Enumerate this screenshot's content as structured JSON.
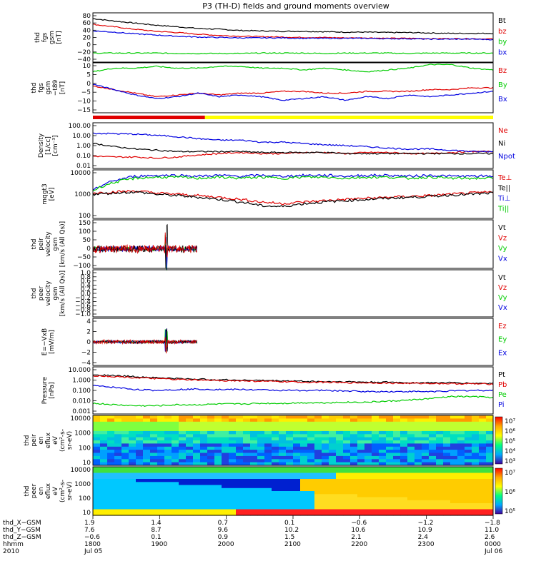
{
  "title": "P3 (TH-D) fields and ground moments overview",
  "colors": {
    "black": "#000000",
    "red": "#e00000",
    "green": "#00cc00",
    "blue": "#0000e0",
    "yellow": "#ffff00"
  },
  "chart_data": [
    {
      "id": "p1",
      "type": "line",
      "ylabel": [
        "thd",
        "fgs",
        "gsm",
        "[nT]"
      ],
      "yticks": [
        "80",
        "60",
        "40",
        "20",
        "0",
        "−20",
        "−40"
      ],
      "ylim": [
        -40,
        80
      ],
      "series": [
        {
          "name": "Bt",
          "color": "black",
          "values": [
            66,
            60,
            55,
            50,
            46,
            42,
            40,
            37,
            36,
            35,
            35,
            34,
            33,
            33,
            32,
            32,
            31,
            30,
            30,
            30
          ]
        },
        {
          "name": "bz",
          "color": "red",
          "values": [
            52,
            46,
            40,
            35,
            32,
            28,
            25,
            23,
            22,
            21,
            20,
            20,
            19,
            19,
            18,
            18,
            17,
            17,
            17,
            16
          ]
        },
        {
          "name": "by",
          "color": "green",
          "values": [
            -18,
            -18,
            -18,
            -18,
            -19,
            -19,
            -19,
            -19,
            -18,
            -18,
            -18,
            -19,
            -18,
            -18,
            -18,
            -19,
            -18,
            -18,
            -18,
            -18
          ]
        },
        {
          "name": "bx",
          "color": "blue",
          "values": [
            36,
            33,
            29,
            26,
            23,
            21,
            20,
            19,
            19,
            19,
            18,
            18,
            18,
            18,
            17,
            17,
            16,
            16,
            16,
            15
          ]
        }
      ]
    },
    {
      "id": "p2",
      "type": "line",
      "ylabel": [
        "thd",
        "fgs",
        "gsm",
        "−t89",
        "[nT]"
      ],
      "yticks": [
        "10",
        "5",
        "0",
        "−5",
        "−10",
        "−15"
      ],
      "ylim": [
        -18,
        10
      ],
      "series": [
        {
          "name": "Bz",
          "color": "red",
          "values": [
            -3,
            -5,
            -7,
            -9,
            -8,
            -7,
            -8,
            -7,
            -7,
            -6,
            -6,
            -7,
            -7,
            -6,
            -6,
            -6,
            -5,
            -5,
            -4,
            -4
          ]
        },
        {
          "name": "By",
          "color": "green",
          "values": [
            5,
            7,
            7,
            8,
            7,
            7,
            8,
            8,
            7,
            7,
            6,
            7,
            6,
            5,
            6,
            7,
            9,
            9,
            7,
            6
          ]
        },
        {
          "name": "Bx",
          "color": "blue",
          "values": [
            -2,
            -5,
            -8,
            -10,
            -9,
            -7,
            -9,
            -8,
            -9,
            -11,
            -10,
            -9,
            -11,
            -9,
            -10,
            -8,
            -9,
            -8,
            -7,
            -6
          ]
        }
      ],
      "flag_bar": {
        "red_fraction": 0.28
      }
    },
    {
      "id": "p3",
      "type": "line",
      "log": true,
      "ylabel": [
        "Density",
        "[1/cc]",
        "[cm⁻³]"
      ],
      "yticks": [
        "100.00",
        "10.00",
        "1.00",
        "0.10",
        "0.01"
      ],
      "ylim": [
        0.01,
        100
      ],
      "series": [
        {
          "name": "Ne",
          "color": "red",
          "values": [
            0.12,
            0.1,
            0.1,
            0.08,
            0.1,
            0.15,
            0.2,
            0.25,
            0.2,
            0.2,
            0.25,
            0.25,
            0.2,
            0.25,
            0.25,
            0.2,
            0.2,
            0.25,
            0.3,
            0.3
          ]
        },
        {
          "name": "Ni",
          "color": "black",
          "values": [
            1.5,
            0.8,
            0.5,
            0.4,
            0.3,
            0.3,
            0.3,
            0.3,
            0.25,
            0.25,
            0.25,
            0.25,
            0.2,
            0.2,
            0.2,
            0.2,
            0.2,
            0.2,
            0.2,
            0.2
          ]
        },
        {
          "name": "Npot",
          "color": "blue",
          "values": [
            12,
            11,
            10,
            8,
            6,
            4,
            3,
            3,
            2,
            2,
            1.5,
            1.2,
            1,
            0.8,
            0.6,
            0.5,
            0.5,
            0.4,
            0.3,
            0.3
          ]
        }
      ]
    },
    {
      "id": "p4",
      "type": "line",
      "log": true,
      "ylabel": [
        "mqgt3",
        "[eV]"
      ],
      "yticks": [
        "10000",
        "1000",
        "100"
      ],
      "ylim": [
        50,
        10000
      ],
      "series": [
        {
          "name": "Te⊥",
          "color": "red",
          "values": [
            800,
            900,
            1000,
            800,
            700,
            600,
            500,
            400,
            300,
            250,
            300,
            350,
            400,
            450,
            500,
            550,
            600,
            700,
            800,
            900
          ]
        },
        {
          "name": "Te||",
          "color": "black",
          "values": [
            700,
            800,
            900,
            700,
            600,
            500,
            400,
            300,
            200,
            180,
            250,
            300,
            350,
            400,
            450,
            500,
            550,
            650,
            700,
            800
          ]
        },
        {
          "name": "Ti⊥",
          "color": "blue",
          "values": [
            1000,
            3000,
            5000,
            5500,
            5500,
            5000,
            5500,
            5000,
            5500,
            5000,
            5500,
            5500,
            5000,
            5500,
            5500,
            5000,
            5500,
            5000,
            5000,
            5000
          ]
        },
        {
          "name": "Ti||",
          "color": "green",
          "values": [
            1000,
            2500,
            4000,
            4500,
            4500,
            4000,
            4500,
            4000,
            4500,
            4000,
            4500,
            4500,
            4000,
            4500,
            4500,
            4000,
            4500,
            4000,
            4000,
            4000
          ]
        }
      ]
    },
    {
      "id": "p5",
      "type": "line",
      "ylabel": [
        "thd",
        "peir",
        "velocity",
        "gsm",
        "[km/s (All Qs)]"
      ],
      "yticks": [
        "150",
        "100",
        "50",
        "0",
        "−50",
        "−100"
      ],
      "ylim": [
        -100,
        150
      ],
      "series": [
        {
          "name": "Vt",
          "color": "black"
        },
        {
          "name": "Vz",
          "color": "red"
        },
        {
          "name": "Vy",
          "color": "green"
        },
        {
          "name": "Vx",
          "color": "blue"
        }
      ]
    },
    {
      "id": "p6",
      "type": "line",
      "ylabel": [
        "thd",
        "peer",
        "velocity",
        "gsm",
        "[km/s (All Qs)]"
      ],
      "yticks": [
        "1.0",
        "0.8",
        "0.6",
        "0.4",
        "0.2",
        "0.0",
        "−0.2",
        "−0.4",
        "−0.6",
        "−0.8",
        "−1.0"
      ],
      "ylim": [
        -1,
        1
      ],
      "series": [
        {
          "name": "Vt",
          "color": "black"
        },
        {
          "name": "Vz",
          "color": "red"
        },
        {
          "name": "Vy",
          "color": "green"
        },
        {
          "name": "Vx",
          "color": "blue"
        }
      ]
    },
    {
      "id": "p7",
      "type": "line",
      "ylabel": [
        "E=−VxB",
        "[mV/m]"
      ],
      "yticks": [
        "4",
        "2",
        "0",
        "−2",
        "−4"
      ],
      "ylim": [
        -4,
        4
      ],
      "series": [
        {
          "name": "Ez",
          "color": "red"
        },
        {
          "name": "Ey",
          "color": "green"
        },
        {
          "name": "Ex",
          "color": "blue"
        }
      ]
    },
    {
      "id": "p8",
      "type": "line",
      "log": true,
      "ylabel": [
        "Pressure",
        "[nPa]"
      ],
      "yticks": [
        "10.000",
        "1.000",
        "0.100",
        "0.010",
        "0.001"
      ],
      "ylim": [
        0.001,
        10
      ],
      "series": [
        {
          "name": "Pt",
          "color": "black",
          "values": [
            2.2,
            1.8,
            1.5,
            1.2,
            1.0,
            0.9,
            0.8,
            0.75,
            0.7,
            0.65,
            0.6,
            0.55,
            0.55,
            0.5,
            0.5,
            0.45,
            0.45,
            0.45,
            0.4,
            0.4
          ]
        },
        {
          "name": "Pb",
          "color": "red",
          "values": [
            1.8,
            1.5,
            1.2,
            1.0,
            0.85,
            0.75,
            0.7,
            0.65,
            0.6,
            0.55,
            0.5,
            0.5,
            0.45,
            0.45,
            0.42,
            0.4,
            0.4,
            0.38,
            0.36,
            0.35
          ]
        },
        {
          "name": "Pe",
          "color": "green",
          "values": [
            0.008,
            0.006,
            0.005,
            0.005,
            0.006,
            0.006,
            0.007,
            0.007,
            0.008,
            0.008,
            0.009,
            0.009,
            0.01,
            0.01,
            0.012,
            0.015,
            0.02,
            0.03,
            0.03,
            0.025
          ]
        },
        {
          "name": "Pi",
          "color": "blue",
          "values": [
            0.25,
            0.18,
            0.12,
            0.1,
            0.12,
            0.13,
            0.12,
            0.12,
            0.11,
            0.1,
            0.1,
            0.1,
            0.09,
            0.08,
            0.08,
            0.08,
            0.08,
            0.09,
            0.1,
            0.1
          ]
        }
      ]
    },
    {
      "id": "p9",
      "type": "heatmap",
      "ylabel": [
        "thd",
        "peir",
        "en",
        "eflux",
        "eV",
        "(cm²-s-",
        "sr-eV)"
      ],
      "yticks": [
        "10000",
        "1000",
        "100",
        "10"
      ],
      "colorbar": [
        "10⁷",
        "10⁶",
        "10⁵",
        "10⁴",
        "10³"
      ]
    },
    {
      "id": "p10",
      "type": "heatmap",
      "ylabel": [
        "thd",
        "peer",
        "en",
        "eflux",
        "eV",
        "(cm²-s-",
        "sr-eV)"
      ],
      "yticks": [
        "10000",
        "1000",
        "100",
        "10"
      ],
      "colorbar": [
        "10⁷",
        "10⁶",
        "10⁵"
      ]
    }
  ],
  "xaxis": {
    "rows": [
      {
        "label": "thd_X−GSM",
        "values": [
          "1.9",
          "1.4",
          "0.7",
          "0.1",
          "−0.6",
          "−1.2",
          "−1.8"
        ]
      },
      {
        "label": "thd_Y−GSM",
        "values": [
          "7.6",
          "8.7",
          "9.6",
          "10.2",
          "10.6",
          "10.9",
          "11.0"
        ]
      },
      {
        "label": "thd_Z−GSM",
        "values": [
          "−0.6",
          "0.1",
          "0.9",
          "1.5",
          "2.1",
          "2.4",
          "2.6"
        ]
      },
      {
        "label": "hhmm",
        "values": [
          "1800",
          "1900",
          "2000",
          "2100",
          "2200",
          "2300",
          "0000"
        ]
      }
    ],
    "year": "2010",
    "date_start": "Jul 05",
    "date_end": "Jul 06"
  }
}
